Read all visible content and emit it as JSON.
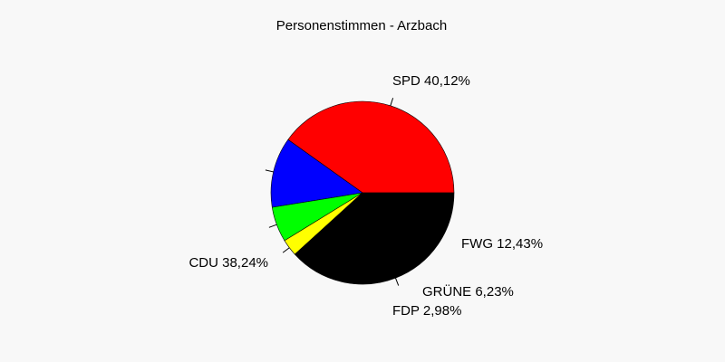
{
  "chart_data": {
    "type": "pie",
    "title": "Personenstimmen - Arzbach",
    "slices": [
      {
        "name": "SPD",
        "value": 40.12,
        "label": "SPD 40,12%",
        "color": "#ff0000"
      },
      {
        "name": "FWG",
        "value": 12.43,
        "label": "FWG 12,43%",
        "color": "#0000ff"
      },
      {
        "name": "GRÜNE",
        "value": 6.23,
        "label": "GRÜNE 6,23%",
        "color": "#00ff00"
      },
      {
        "name": "FDP",
        "value": 2.98,
        "label": "FDP 2,98%",
        "color": "#ffff00"
      },
      {
        "name": "CDU",
        "value": 38.24,
        "label": "CDU 38,24%",
        "color": "#000000"
      }
    ],
    "legend": "none",
    "background": "#f8f8f8"
  }
}
